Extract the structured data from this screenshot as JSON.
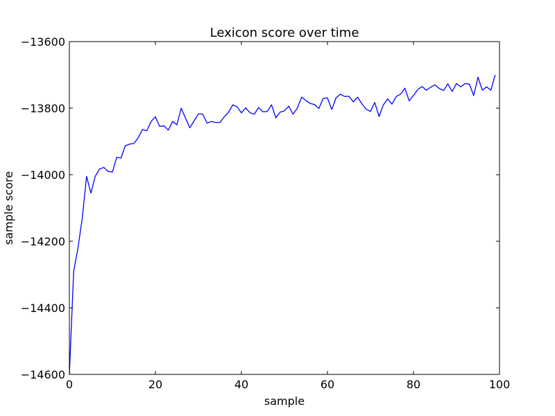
{
  "chart_data": {
    "type": "line",
    "title": "Lexicon score over time",
    "xlabel": "sample",
    "ylabel": "sample score",
    "xlim": [
      0,
      100
    ],
    "ylim": [
      -14600,
      -13600
    ],
    "xticks": [
      0,
      20,
      40,
      60,
      80,
      100
    ],
    "xtick_labels": [
      "0",
      "20",
      "40",
      "60",
      "80",
      "100"
    ],
    "yticks": [
      -13600,
      -13800,
      -14000,
      -14200,
      -14400,
      -14600
    ],
    "ytick_labels": [
      "−13600",
      "−13800",
      "−14000",
      "−14200",
      "−14400",
      "−14600"
    ],
    "grid": false,
    "series": [
      {
        "color": "#0000ff",
        "x": [
          0,
          1,
          2,
          3,
          4,
          5,
          6,
          7,
          8,
          9,
          10,
          11,
          12,
          13,
          14,
          15,
          16,
          17,
          18,
          19,
          20,
          21,
          22,
          23,
          24,
          25,
          26,
          27,
          28,
          29,
          30,
          31,
          32,
          33,
          34,
          35,
          36,
          37,
          38,
          39,
          40,
          41,
          42,
          43,
          44,
          45,
          46,
          47,
          48,
          49,
          50,
          51,
          52,
          53,
          54,
          55,
          56,
          57,
          58,
          59,
          60,
          61,
          62,
          63,
          64,
          65,
          66,
          67,
          68,
          69,
          70,
          71,
          72,
          73,
          74,
          75,
          76,
          77,
          78,
          79,
          80,
          81,
          82,
          83,
          84,
          85,
          86,
          87,
          88,
          89,
          90,
          91,
          92,
          93,
          94,
          95,
          96,
          97,
          98,
          99
        ],
        "y": [
          -14600,
          -14290,
          -14220,
          -14130,
          -14005,
          -14055,
          -14005,
          -13983,
          -13978,
          -13990,
          -13992,
          -13948,
          -13950,
          -13913,
          -13908,
          -13906,
          -13889,
          -13864,
          -13868,
          -13840,
          -13826,
          -13855,
          -13853,
          -13866,
          -13840,
          -13850,
          -13800,
          -13830,
          -13859,
          -13838,
          -13817,
          -13818,
          -13845,
          -13840,
          -13843,
          -13843,
          -13826,
          -13812,
          -13790,
          -13796,
          -13814,
          -13799,
          -13814,
          -13818,
          -13798,
          -13811,
          -13810,
          -13790,
          -13829,
          -13812,
          -13808,
          -13794,
          -13818,
          -13800,
          -13767,
          -13777,
          -13786,
          -13789,
          -13801,
          -13771,
          -13769,
          -13804,
          -13769,
          -13758,
          -13765,
          -13764,
          -13781,
          -13767,
          -13787,
          -13803,
          -13810,
          -13783,
          -13825,
          -13790,
          -13772,
          -13788,
          -13765,
          -13758,
          -13740,
          -13778,
          -13762,
          -13744,
          -13735,
          -13746,
          -13737,
          -13730,
          -13741,
          -13747,
          -13727,
          -13750,
          -13726,
          -13736,
          -13726,
          -13728,
          -13762,
          -13707,
          -13746,
          -13736,
          -13746,
          -13700
        ]
      }
    ]
  }
}
